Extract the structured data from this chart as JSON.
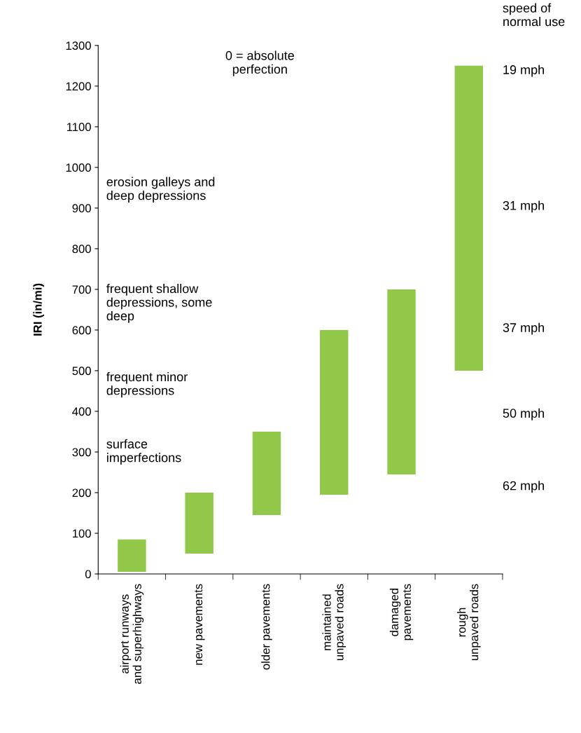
{
  "chart_data": {
    "type": "bar",
    "ylabel": "IRI (in/mi)",
    "categories": [
      "airport runways\nand superhighways",
      "new pavements",
      "older pavements",
      "maintained\nunpaved roads",
      "damaged\npavements",
      "rough\nunpaved roads"
    ],
    "base": [
      5,
      50,
      145,
      195,
      245,
      500
    ],
    "values": [
      80,
      150,
      205,
      405,
      455,
      750
    ],
    "color": "#92c84a",
    "ylim": [
      0,
      1300
    ],
    "yticks": [
      0,
      100,
      200,
      300,
      400,
      500,
      600,
      700,
      800,
      900,
      1000,
      1100,
      1200,
      1300
    ],
    "grid": false,
    "legend": false,
    "annotations": [
      "0 = absolute\nperfection",
      "speed of\nnormal use",
      "19 mph",
      "31 mph",
      "37 mph",
      "50 mph",
      "62 mph",
      "erosion galleys and\ndeep depressions",
      "frequent shallow\ndepressions, some\ndeep",
      "frequent minor\ndepressions",
      "surface\nimperfections"
    ]
  }
}
